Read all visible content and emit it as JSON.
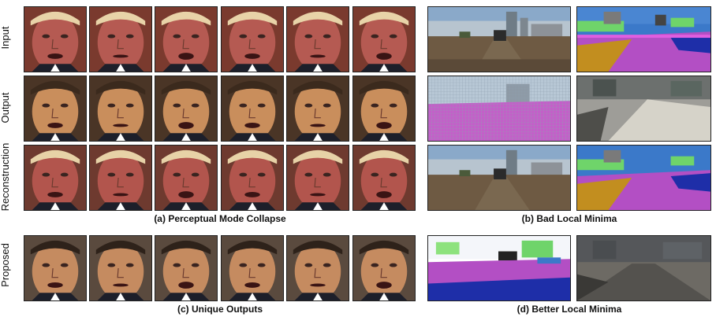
{
  "row_labels": {
    "input": "Input",
    "output": "Output",
    "reconstruction": "Reconstruction",
    "proposed": "Proposed"
  },
  "captions": {
    "a": "(a) Perceptual Mode Collapse",
    "b": "(b) Bad Local Minima",
    "c": "(c) Unique Outputs",
    "d": "(d) Better Local Minima"
  },
  "colors": {
    "face_red": "#b55a52",
    "face_tan": "#c98e5c",
    "road_purple": "#b34fc4",
    "sky_blue": "#3b79c9",
    "road_brown": "#7a6850"
  }
}
